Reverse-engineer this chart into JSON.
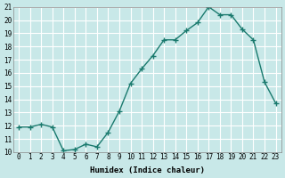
{
  "x": [
    0,
    1,
    2,
    3,
    4,
    5,
    6,
    7,
    8,
    9,
    10,
    11,
    12,
    13,
    14,
    15,
    16,
    17,
    18,
    19,
    20,
    21,
    22,
    23
  ],
  "y": [
    11.9,
    11.9,
    12.1,
    11.9,
    10.1,
    10.2,
    10.6,
    10.4,
    11.5,
    13.1,
    15.2,
    16.3,
    17.3,
    18.5,
    18.5,
    19.2,
    19.8,
    21.0,
    20.4,
    20.4,
    19.3,
    18.5,
    15.3,
    13.7
  ],
  "xlabel": "Humidex (Indice chaleur)",
  "xlim": [
    -0.5,
    23.5
  ],
  "ylim": [
    10,
    21
  ],
  "yticks": [
    10,
    11,
    12,
    13,
    14,
    15,
    16,
    17,
    18,
    19,
    20,
    21
  ],
  "xticks": [
    0,
    1,
    2,
    3,
    4,
    5,
    6,
    7,
    8,
    9,
    10,
    11,
    12,
    13,
    14,
    15,
    16,
    17,
    18,
    19,
    20,
    21,
    22,
    23
  ],
  "line_color": "#1a7a6e",
  "marker": "P",
  "bg_color": "#c8e8e8",
  "grid_color": "#ffffff",
  "font_family": "monospace"
}
